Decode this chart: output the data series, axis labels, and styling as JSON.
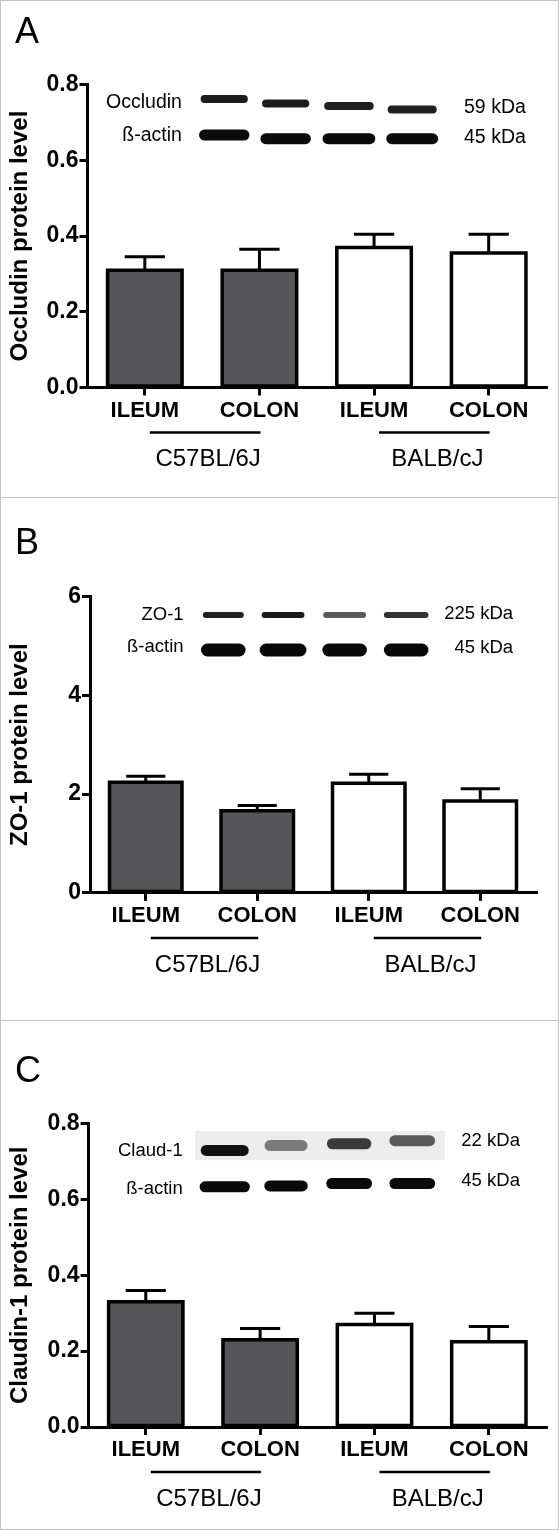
{
  "chart_data": [
    {
      "type": "bar",
      "title": "A",
      "ylabel": "Occludin protein level",
      "categories": [
        "ILEUM",
        "COLON",
        "ILEUM",
        "COLON"
      ],
      "values": [
        0.31,
        0.31,
        0.37,
        0.355
      ],
      "colors": [
        "#55555a",
        "#55555a",
        "#ffffff",
        "#ffffff"
      ],
      "errors": [
        [
          0.31,
          0.345
        ],
        [
          0.31,
          0.365
        ],
        [
          0.37,
          0.405
        ],
        [
          0.355,
          0.405
        ]
      ],
      "ylim": [
        0,
        0.8
      ],
      "yticks": [
        {
          "value": 0,
          "label": "0.0"
        },
        0.2,
        0.4,
        0.6,
        0.8
      ],
      "annotations": [
        "C57BL/6J",
        "BALB/cJ",
        "Occludin",
        "ß-actin",
        "59 kDa",
        "45 kDa"
      ]
    },
    {
      "type": "bar",
      "title": "B",
      "ylabel": "ZO-1 protein level",
      "categories": [
        "ILEUM",
        "COLON",
        "ILEUM",
        "COLON"
      ],
      "values": [
        2.24,
        1.66,
        2.22,
        1.86
      ],
      "colors": [
        "#55555a",
        "#55555a",
        "#ffffff",
        "#ffffff"
      ],
      "errors": [
        [
          2.24,
          2.36
        ],
        [
          1.66,
          1.77
        ],
        [
          2.22,
          2.4
        ],
        [
          1.86,
          2.11
        ]
      ],
      "ylim": [
        0,
        6
      ],
      "yticks": [
        0,
        2,
        4,
        6
      ],
      "annotations": [
        "C57BL/6J",
        "BALB/cJ",
        "ZO-1",
        "ß-actin",
        "225 kDa",
        "45 kDa"
      ]
    },
    {
      "type": "bar",
      "title": "C",
      "ylabel": "Claudin-1 protein level",
      "categories": [
        "ILEUM",
        "COLON",
        "ILEUM",
        "COLON"
      ],
      "values": [
        0.33,
        0.23,
        0.27,
        0.225
      ],
      "colors": [
        "#55555a",
        "#55555a",
        "#ffffff",
        "#ffffff"
      ],
      "errors": [
        [
          0.33,
          0.36
        ],
        [
          0.23,
          0.26
        ],
        [
          0.27,
          0.3
        ],
        [
          0.225,
          0.265
        ]
      ],
      "ylim": [
        0,
        0.8
      ],
      "yticks": [
        {
          "value": 0,
          "label": "0.0"
        },
        0.2,
        0.4,
        0.6,
        0.8
      ],
      "annotations": [
        "C57BL/6J",
        "BALB/cJ",
        "Claud-1",
        "ß-actin",
        "22 kDa",
        "45 kDa"
      ]
    }
  ]
}
